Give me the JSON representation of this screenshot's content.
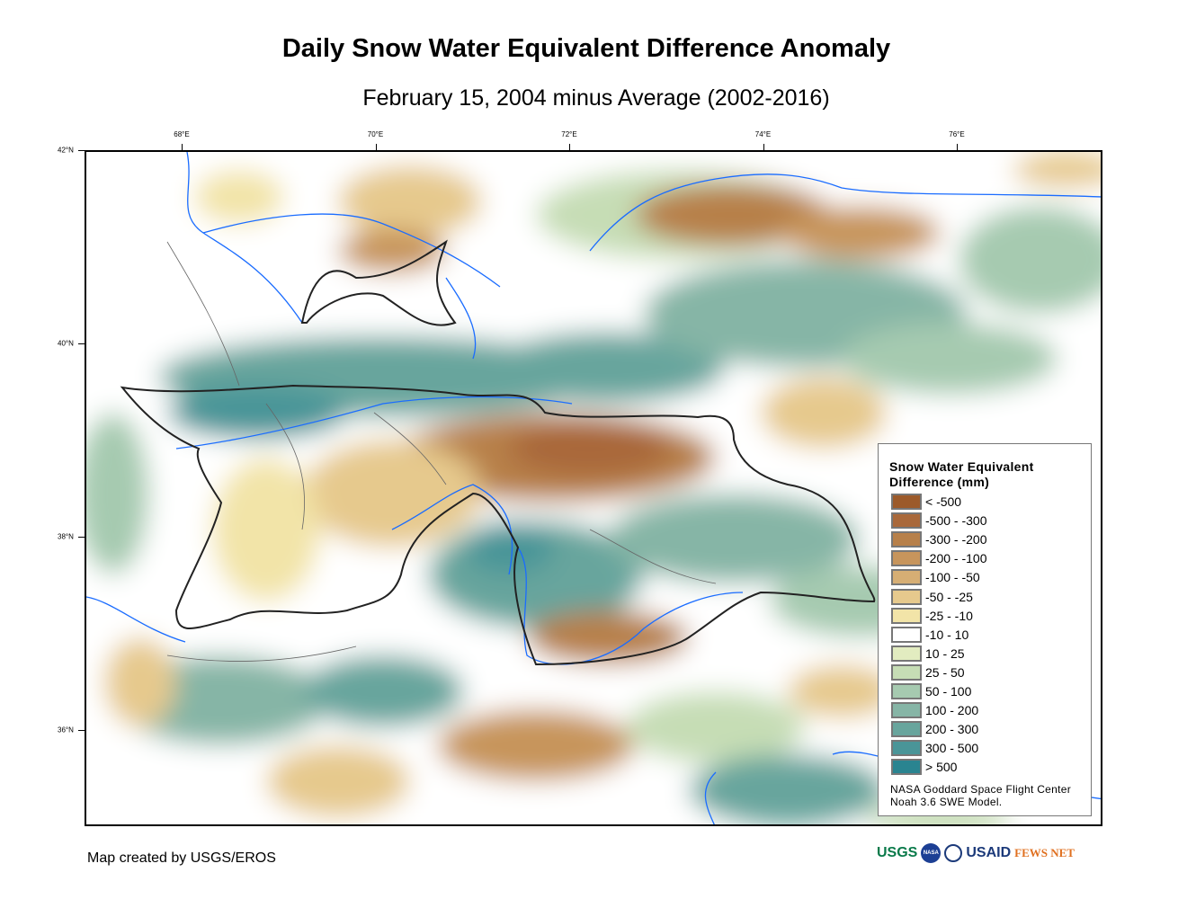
{
  "title": "Daily Snow Water Equivalent Difference Anomaly",
  "subtitle": "February 15, 2004 minus Average (2002-2016)",
  "axes": {
    "longitude_ticks": [
      {
        "label": "68°E",
        "value": 68
      },
      {
        "label": "70°E",
        "value": 70
      },
      {
        "label": "72°E",
        "value": 72
      },
      {
        "label": "74°E",
        "value": 74
      },
      {
        "label": "76°E",
        "value": 76
      }
    ],
    "latitude_ticks": [
      {
        "label": "42°N",
        "value": 42
      },
      {
        "label": "40°N",
        "value": 40
      },
      {
        "label": "38°N",
        "value": 38
      },
      {
        "label": "36°N",
        "value": 36
      }
    ]
  },
  "legend": {
    "title_line1": "Snow Water Equivalent",
    "title_line2": "Difference (mm)",
    "items": [
      {
        "label": "< -500",
        "color": "#9c5a2a"
      },
      {
        "label": "-500 - -300",
        "color": "#a9683a"
      },
      {
        "label": "-300 - -200",
        "color": "#b7804a"
      },
      {
        "label": "-200 - -100",
        "color": "#c7955c"
      },
      {
        "label": "-100 - -50",
        "color": "#d6ae74"
      },
      {
        "label": "-50 - -25",
        "color": "#e6c98d"
      },
      {
        "label": "-25 - -10",
        "color": "#f2e4a8"
      },
      {
        "label": "-10 - 10",
        "color": "#ffffff"
      },
      {
        "label": "10 - 25",
        "color": "#e2ecc0"
      },
      {
        "label": "25 - 50",
        "color": "#c6ddb5"
      },
      {
        "label": "50 - 100",
        "color": "#a6cab0"
      },
      {
        "label": "100 - 200",
        "color": "#86b5a6"
      },
      {
        "label": "200 - 300",
        "color": "#68a59d"
      },
      {
        "label": "300 - 500",
        "color": "#4a9598"
      },
      {
        "label": "> 500",
        "color": "#2a8490"
      }
    ],
    "credit_line1": "NASA Goddard Space Flight Center",
    "credit_line2": "Noah 3.6 SWE Model."
  },
  "footer": "Map created by USGS/EROS",
  "logos": [
    "USGS",
    "NASA",
    "USAID",
    "FEWS NET"
  ],
  "colors": {
    "river": "#1a6cff",
    "border": "#222222"
  }
}
